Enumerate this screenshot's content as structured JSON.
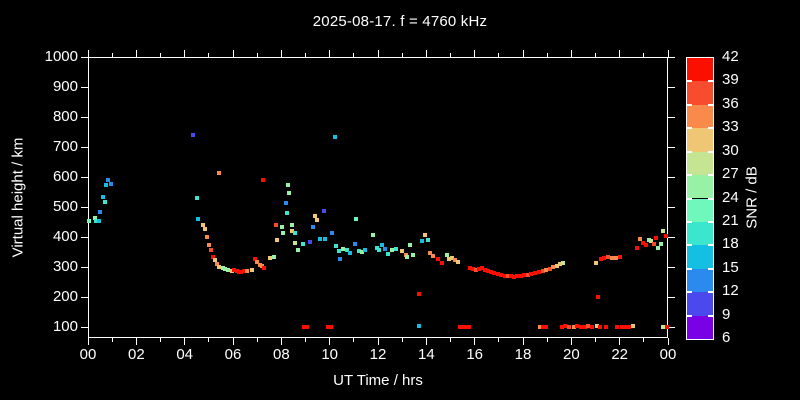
{
  "colors": {
    "background": "#000000",
    "frame": "#ffffff",
    "text": "#ffffff"
  },
  "chart_data": {
    "type": "scatter",
    "title": "2025-08-17. f = 4760 kHz",
    "xlabel": "UT Time / hrs",
    "ylabel": "Virtual height / km",
    "colorbar_label": "SNR / dB",
    "marker": "square",
    "x_range_hours": [
      0,
      24
    ],
    "x_major_tick_hours": [
      0,
      2,
      4,
      6,
      8,
      10,
      12,
      14,
      16,
      18,
      20,
      22,
      24
    ],
    "x_major_tick_labels": [
      "00",
      "02",
      "04",
      "06",
      "08",
      "10",
      "12",
      "14",
      "16",
      "18",
      "20",
      "22",
      "00"
    ],
    "x_minor_tick_hours": [
      1,
      3,
      5,
      7,
      9,
      11,
      13,
      15,
      17,
      19,
      21,
      23
    ],
    "y_tick_km": [
      100,
      200,
      300,
      400,
      500,
      600,
      700,
      800,
      900,
      1000
    ],
    "y_range_km": [
      66,
      1000
    ],
    "snr_tick_values": [
      6,
      9,
      12,
      15,
      18,
      21,
      24,
      27,
      30,
      33,
      36,
      39,
      42
    ],
    "snr_palette_low_to_high": [
      "#7A00E6",
      "#4B48EE",
      "#2A8AEE",
      "#15BFE4",
      "#3BE6CE",
      "#6FF7BC",
      "#97F2A5",
      "#C6E593",
      "#EFC673",
      "#FA8A4C",
      "#F74C2E",
      "#FA0F00"
    ],
    "points_hour_km_colorIndex": [
      [
        0.05,
        455,
        5
      ],
      [
        0.3,
        462,
        6
      ],
      [
        0.33,
        452,
        4
      ],
      [
        0.45,
        452,
        3
      ],
      [
        0.5,
        483,
        2
      ],
      [
        0.62,
        532,
        3
      ],
      [
        0.7,
        517,
        4
      ],
      [
        0.74,
        572,
        3
      ],
      [
        0.83,
        590,
        2
      ],
      [
        0.97,
        578,
        2
      ],
      [
        4.34,
        740,
        1
      ],
      [
        4.51,
        530,
        4
      ],
      [
        4.55,
        460,
        3
      ],
      [
        4.76,
        440,
        8
      ],
      [
        4.84,
        428,
        8
      ],
      [
        4.92,
        400,
        9
      ],
      [
        5.0,
        373,
        9
      ],
      [
        5.1,
        357,
        10
      ],
      [
        5.17,
        333,
        11
      ],
      [
        5.25,
        322,
        8
      ],
      [
        5.34,
        310,
        9
      ],
      [
        5.42,
        300,
        8
      ],
      [
        5.42,
        613,
        9
      ],
      [
        5.6,
        298,
        6
      ],
      [
        5.68,
        292,
        6
      ],
      [
        5.8,
        290,
        6
      ],
      [
        5.95,
        287,
        8
      ],
      [
        6.05,
        289,
        11
      ],
      [
        6.15,
        286,
        11
      ],
      [
        6.25,
        284,
        11
      ],
      [
        6.35,
        284,
        11
      ],
      [
        6.45,
        287,
        11
      ],
      [
        6.57,
        287,
        9
      ],
      [
        6.78,
        290,
        8
      ],
      [
        6.9,
        327,
        11
      ],
      [
        7.0,
        317,
        9
      ],
      [
        7.1,
        308,
        9
      ],
      [
        7.22,
        302,
        9
      ],
      [
        7.28,
        296,
        11
      ],
      [
        7.24,
        590,
        11
      ],
      [
        7.53,
        330,
        8
      ],
      [
        7.7,
        333,
        6
      ],
      [
        7.78,
        440,
        10
      ],
      [
        7.82,
        390,
        8
      ],
      [
        8.02,
        433,
        6
      ],
      [
        8.07,
        413,
        6
      ],
      [
        8.19,
        513,
        2
      ],
      [
        8.23,
        480,
        4
      ],
      [
        8.28,
        572,
        6
      ],
      [
        8.32,
        547,
        6
      ],
      [
        8.44,
        440,
        6
      ],
      [
        8.46,
        420,
        8
      ],
      [
        8.56,
        413,
        4
      ],
      [
        8.58,
        380,
        7
      ],
      [
        8.7,
        357,
        6
      ],
      [
        8.9,
        377,
        4
      ],
      [
        9.2,
        383,
        1
      ],
      [
        9.3,
        433,
        2
      ],
      [
        9.38,
        470,
        8
      ],
      [
        9.48,
        458,
        8
      ],
      [
        9.6,
        393,
        3
      ],
      [
        9.77,
        487,
        1
      ],
      [
        9.82,
        393,
        3
      ],
      [
        10.1,
        413,
        2
      ],
      [
        10.2,
        735,
        3
      ],
      [
        10.26,
        370,
        4
      ],
      [
        10.4,
        353,
        4
      ],
      [
        10.42,
        327,
        2
      ],
      [
        10.55,
        360,
        6
      ],
      [
        10.7,
        357,
        4
      ],
      [
        10.84,
        347,
        3
      ],
      [
        11.05,
        377,
        2
      ],
      [
        11.1,
        460,
        5
      ],
      [
        11.2,
        353,
        4
      ],
      [
        11.32,
        350,
        6
      ],
      [
        11.45,
        357,
        3
      ],
      [
        11.8,
        407,
        6
      ],
      [
        11.95,
        363,
        4
      ],
      [
        12.05,
        357,
        4
      ],
      [
        12.16,
        373,
        3
      ],
      [
        12.3,
        360,
        2
      ],
      [
        12.42,
        345,
        4
      ],
      [
        12.56,
        357,
        6
      ],
      [
        12.76,
        360,
        4
      ],
      [
        13.0,
        353,
        8
      ],
      [
        13.16,
        340,
        9
      ],
      [
        13.22,
        333,
        6
      ],
      [
        13.32,
        373,
        6
      ],
      [
        13.45,
        340,
        6
      ],
      [
        13.7,
        210,
        11
      ],
      [
        13.8,
        387,
        3
      ],
      [
        13.94,
        407,
        8
      ],
      [
        14.07,
        390,
        4
      ],
      [
        14.15,
        347,
        9
      ],
      [
        14.27,
        337,
        9
      ],
      [
        14.48,
        327,
        11
      ],
      [
        14.64,
        313,
        11
      ],
      [
        14.85,
        340,
        6
      ],
      [
        14.95,
        328,
        8
      ],
      [
        15.06,
        330,
        8
      ],
      [
        15.2,
        322,
        9
      ],
      [
        15.32,
        318,
        8
      ],
      [
        15.8,
        297,
        11
      ],
      [
        15.92,
        293,
        11
      ],
      [
        16.05,
        290,
        10
      ],
      [
        16.17,
        293,
        11
      ],
      [
        16.3,
        297,
        11
      ],
      [
        16.42,
        291,
        11
      ],
      [
        16.55,
        287,
        11
      ],
      [
        16.68,
        283,
        11
      ],
      [
        16.8,
        280,
        11
      ],
      [
        16.95,
        277,
        11
      ],
      [
        17.1,
        273,
        11
      ],
      [
        17.25,
        271,
        11
      ],
      [
        17.38,
        269,
        10
      ],
      [
        17.5,
        269,
        11
      ],
      [
        17.63,
        267,
        11
      ],
      [
        17.77,
        269,
        11
      ],
      [
        17.9,
        270,
        11
      ],
      [
        18.05,
        272,
        11
      ],
      [
        18.2,
        273,
        10
      ],
      [
        18.35,
        277,
        11
      ],
      [
        18.5,
        280,
        11
      ],
      [
        18.65,
        283,
        11
      ],
      [
        18.82,
        287,
        10
      ],
      [
        18.95,
        290,
        9
      ],
      [
        19.1,
        295,
        10
      ],
      [
        19.25,
        300,
        9
      ],
      [
        19.4,
        305,
        8
      ],
      [
        19.55,
        310,
        8
      ],
      [
        19.65,
        314,
        7
      ],
      [
        21.0,
        313,
        8
      ],
      [
        21.1,
        200,
        11
      ],
      [
        21.22,
        327,
        11
      ],
      [
        21.36,
        330,
        11
      ],
      [
        21.5,
        333,
        10
      ],
      [
        21.7,
        330,
        9
      ],
      [
        21.85,
        330,
        9
      ],
      [
        22.0,
        333,
        11
      ],
      [
        22.7,
        363,
        11
      ],
      [
        22.85,
        393,
        9
      ],
      [
        22.95,
        380,
        11
      ],
      [
        23.1,
        373,
        11
      ],
      [
        23.2,
        390,
        6
      ],
      [
        23.3,
        387,
        7
      ],
      [
        23.42,
        377,
        10
      ],
      [
        23.5,
        397,
        11
      ],
      [
        23.6,
        363,
        6
      ],
      [
        23.7,
        377,
        6
      ],
      [
        23.8,
        420,
        7
      ],
      [
        23.9,
        403,
        11
      ],
      [
        8.95,
        100,
        11
      ],
      [
        9.05,
        100,
        11
      ],
      [
        9.95,
        100,
        11
      ],
      [
        10.05,
        100,
        11
      ],
      [
        13.7,
        103,
        3
      ],
      [
        15.4,
        100,
        11
      ],
      [
        15.52,
        100,
        11
      ],
      [
        15.65,
        100,
        11
      ],
      [
        15.78,
        100,
        11
      ],
      [
        18.7,
        100,
        9
      ],
      [
        18.82,
        100,
        11
      ],
      [
        18.95,
        100,
        11
      ],
      [
        19.6,
        100,
        11
      ],
      [
        19.75,
        103,
        11
      ],
      [
        19.9,
        100,
        10
      ],
      [
        20.1,
        100,
        9
      ],
      [
        20.25,
        103,
        11
      ],
      [
        20.4,
        100,
        11
      ],
      [
        20.55,
        100,
        11
      ],
      [
        20.7,
        103,
        10
      ],
      [
        20.85,
        100,
        11
      ],
      [
        21.05,
        103,
        8
      ],
      [
        21.2,
        100,
        11
      ],
      [
        21.45,
        100,
        11
      ],
      [
        21.9,
        100,
        11
      ],
      [
        22.1,
        100,
        11
      ],
      [
        22.25,
        100,
        11
      ],
      [
        22.4,
        100,
        11
      ],
      [
        22.55,
        103,
        8
      ],
      [
        23.8,
        100,
        7
      ],
      [
        23.95,
        100,
        11
      ]
    ]
  }
}
